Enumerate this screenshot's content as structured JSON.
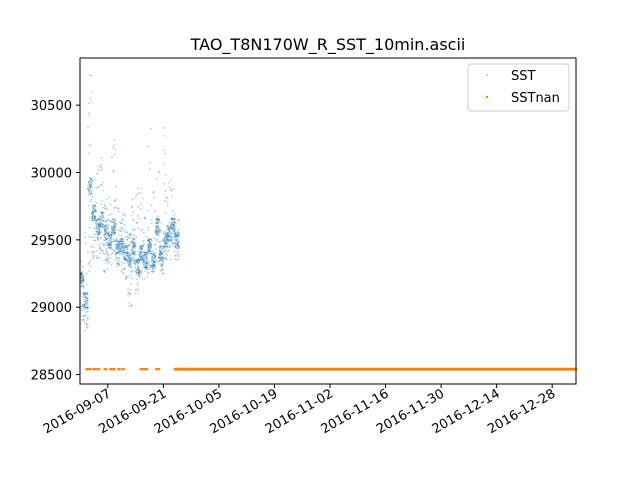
{
  "chart_data": {
    "type": "scatter",
    "title": "TAO_T8N170W_R_SST_10min.ascii",
    "xlabel": "",
    "ylabel": "",
    "x_type": "date",
    "xlim": [
      "2016-08-31",
      "2017-01-03"
    ],
    "ylim": [
      28430,
      30850
    ],
    "y_ticks": [
      28500,
      29000,
      29500,
      30000,
      30500
    ],
    "x_ticks": [
      "2016-09-07",
      "2016-09-21",
      "2016-10-05",
      "2016-10-19",
      "2016-11-02",
      "2016-11-16",
      "2016-11-30",
      "2016-12-14",
      "2016-12-28"
    ],
    "grid": false,
    "legend": {
      "position": "top-right",
      "entries": [
        "SST",
        "SSTnan"
      ]
    },
    "colors": {
      "SST": "#1f77b4",
      "SSTnan": "#ff7f0e"
    },
    "series": [
      {
        "name": "SST",
        "marker": "point",
        "x": [
          "2016-08-31",
          "2016-09-01",
          "2016-09-02",
          "2016-09-03",
          "2016-09-04",
          "2016-09-05",
          "2016-09-06",
          "2016-09-07",
          "2016-09-08",
          "2016-09-09",
          "2016-09-10",
          "2016-09-11",
          "2016-09-12",
          "2016-09-13",
          "2016-09-14",
          "2016-09-15",
          "2016-09-16",
          "2016-09-17",
          "2016-09-18",
          "2016-09-19",
          "2016-09-20",
          "2016-09-21",
          "2016-09-22",
          "2016-09-23",
          "2016-09-24"
        ],
        "center": [
          29200,
          29050,
          29900,
          29700,
          29600,
          29650,
          29550,
          29500,
          29600,
          29450,
          29450,
          29400,
          29350,
          29450,
          29300,
          29400,
          29350,
          29450,
          29350,
          29600,
          29400,
          29500,
          29550,
          29600,
          29500
        ],
        "high": [
          29400,
          29700,
          30750,
          30200,
          30100,
          30150,
          29800,
          29900,
          30300,
          29900,
          29700,
          29700,
          29550,
          29800,
          29900,
          29900,
          29700,
          30400,
          29900,
          30100,
          29700,
          30450,
          30000,
          29900,
          29700
        ],
        "low": [
          28900,
          28800,
          29200,
          29350,
          29350,
          29400,
          29250,
          29300,
          29350,
          29300,
          29250,
          29200,
          29000,
          29200,
          29100,
          29200,
          29200,
          29250,
          29250,
          29300,
          29250,
          29350,
          29350,
          29400,
          29350
        ]
      },
      {
        "name": "SSTnan",
        "marker": "point",
        "y": 28540,
        "scattered_dates": [
          "2016-09-01",
          "2016-09-02",
          "2016-09-03",
          "2016-09-04",
          "2016-09-06",
          "2016-09-07",
          "2016-09-08",
          "2016-09-09",
          "2016-09-10",
          "2016-09-15",
          "2016-09-16",
          "2016-09-19"
        ],
        "continuous_range": [
          "2016-09-24",
          "2017-01-03"
        ]
      }
    ]
  }
}
